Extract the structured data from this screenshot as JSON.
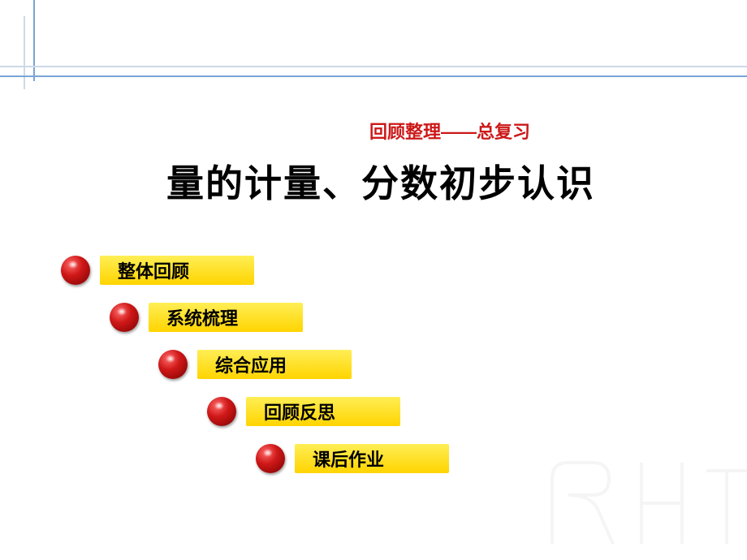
{
  "header": {
    "subtitle": "回顾整理——总复习",
    "subtitle_color": "#cc1818",
    "subtitle_fontsize": 22,
    "title": "量的计量、分数初步认识",
    "title_fontsize": 46,
    "accent_line_color": "#7aa5d6",
    "accent_line_light": "#cdd9e8"
  },
  "nav": {
    "items": [
      {
        "label": "整体回顾",
        "indent": 0
      },
      {
        "label": "系统梳理",
        "indent": 60
      },
      {
        "label": "综合应用",
        "indent": 120
      },
      {
        "label": "回顾反思",
        "indent": 180
      },
      {
        "label": "课后作业",
        "indent": 240
      }
    ],
    "sphere_color_dark": "#7a0000",
    "sphere_color_mid": "#d01818",
    "sphere_color_light": "#ff6b6b",
    "pill_color_top": "#ffee55",
    "pill_color_bottom": "#ffd400",
    "pill_fontsize": 22,
    "pill_width": 190
  }
}
